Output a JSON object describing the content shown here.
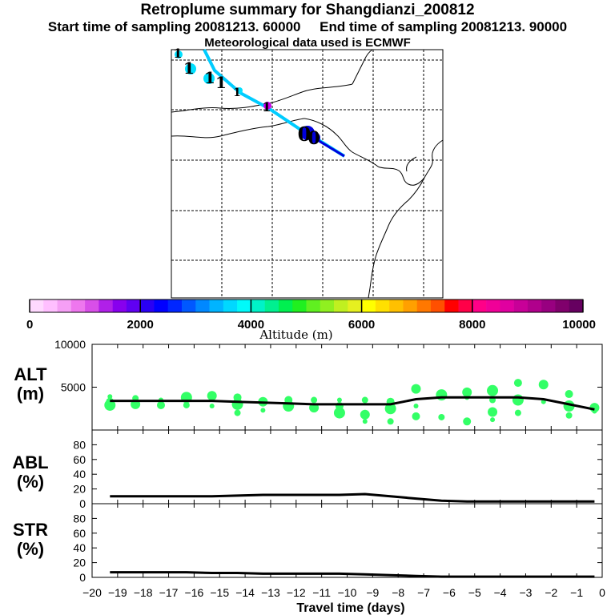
{
  "header": {
    "title": "Retroplume summary for Shangdianzi_200812",
    "subtitle": "Start time of sampling 20081213. 60000     End time of sampling 20081213. 90000",
    "meteo": "Meteorological data used is ECMWF"
  },
  "colors": {
    "scatter": "#33ff66",
    "line": "#000000",
    "track_cyan": "#00ccff",
    "track_blue": "#0000dd"
  },
  "chart_data": [
    {
      "type": "map",
      "title": "Retroplume trajectory",
      "track": [
        {
          "label": "1",
          "altitude": 3600
        },
        {
          "label": "1",
          "altitude": 3500
        },
        {
          "label": "1",
          "altitude": 3400
        },
        {
          "label": "1",
          "altitude": 3300
        },
        {
          "label": "1",
          "altitude": 3300
        },
        {
          "label": "1",
          "altitude": 8800
        },
        {
          "label": "0",
          "altitude": 2300
        },
        {
          "label": "0",
          "altitude": 2300
        }
      ]
    },
    {
      "type": "colorbar",
      "xlabel": "Altitude (m)",
      "ticks": [
        "0",
        "2000",
        "4000",
        "6000",
        "8000",
        "10000"
      ],
      "range": [
        0,
        10000
      ],
      "colors": [
        "#ffd9ff",
        "#ffbfff",
        "#f59ff5",
        "#ee77ee",
        "#d84fe8",
        "#b020e8",
        "#8800ee",
        "#6000f2",
        "#2a00f4",
        "#0000ff",
        "#0026ff",
        "#0058ff",
        "#0088ff",
        "#00b4ff",
        "#00d8ff",
        "#00fafa",
        "#00f2c8",
        "#00f090",
        "#00f050",
        "#20f020",
        "#60f020",
        "#90f020",
        "#c0f020",
        "#e6f020",
        "#ffff00",
        "#ffe000",
        "#ffc000",
        "#ffa000",
        "#ff7800",
        "#ff5000",
        "#ff0000",
        "#ff0048",
        "#ff0088",
        "#f00098",
        "#e000a0",
        "#c80098",
        "#b0008c",
        "#980080",
        "#80006c",
        "#660060"
      ]
    },
    {
      "type": "scatter",
      "ylabel": "ALT\n(m)",
      "ylabel_lines": [
        "ALT",
        "(m)"
      ],
      "ylim": [
        0,
        10000
      ],
      "yticks": [
        "5000",
        "10000"
      ],
      "x": [
        -19.3,
        -18.3,
        -17.3,
        -16.3,
        -15.3,
        -14.3,
        -13.3,
        -12.3,
        -11.3,
        -10.3,
        -9.3,
        -8.3,
        -7.3,
        -6.3,
        -5.3,
        -4.3,
        -3.3,
        -2.3,
        -1.3,
        -0.3
      ],
      "mean_altitude": [
        3400,
        3400,
        3400,
        3400,
        3400,
        3300,
        3200,
        3100,
        3000,
        3000,
        3000,
        3000,
        3600,
        3800,
        3800,
        3800,
        3800,
        3600,
        3000,
        2400
      ],
      "points": [
        {
          "x": -19.3,
          "y": 3900
        },
        {
          "x": -19.3,
          "y": 3300
        },
        {
          "x": -19.3,
          "y": 2900
        },
        {
          "x": -18.3,
          "y": 3700
        },
        {
          "x": -18.3,
          "y": 3000
        },
        {
          "x": -17.3,
          "y": 3500
        },
        {
          "x": -17.3,
          "y": 2900
        },
        {
          "x": -16.3,
          "y": 3800
        },
        {
          "x": -16.3,
          "y": 2900
        },
        {
          "x": -15.3,
          "y": 4000
        },
        {
          "x": -15.3,
          "y": 2800
        },
        {
          "x": -14.3,
          "y": 3800
        },
        {
          "x": -14.3,
          "y": 3000
        },
        {
          "x": -14.3,
          "y": 2000
        },
        {
          "x": -13.3,
          "y": 3300
        },
        {
          "x": -13.3,
          "y": 2300
        },
        {
          "x": -12.3,
          "y": 3500
        },
        {
          "x": -12.3,
          "y": 2800
        },
        {
          "x": -11.3,
          "y": 3500
        },
        {
          "x": -11.3,
          "y": 2600
        },
        {
          "x": -10.3,
          "y": 3500
        },
        {
          "x": -10.3,
          "y": 2800
        },
        {
          "x": -10.3,
          "y": 2000
        },
        {
          "x": -9.3,
          "y": 3500
        },
        {
          "x": -9.3,
          "y": 1800
        },
        {
          "x": -9.3,
          "y": 1000
        },
        {
          "x": -8.3,
          "y": 3300
        },
        {
          "x": -8.3,
          "y": 2500
        },
        {
          "x": -8.3,
          "y": 1000
        },
        {
          "x": -7.3,
          "y": 4800
        },
        {
          "x": -7.3,
          "y": 2800
        },
        {
          "x": -7.3,
          "y": 1600
        },
        {
          "x": -6.3,
          "y": 4100
        },
        {
          "x": -6.3,
          "y": 1500
        },
        {
          "x": -5.3,
          "y": 4400
        },
        {
          "x": -5.3,
          "y": 3800
        },
        {
          "x": -5.3,
          "y": 1000
        },
        {
          "x": -4.3,
          "y": 4600
        },
        {
          "x": -4.3,
          "y": 3500
        },
        {
          "x": -4.3,
          "y": 2100
        },
        {
          "x": -4.3,
          "y": 1200
        },
        {
          "x": -3.3,
          "y": 5500
        },
        {
          "x": -3.3,
          "y": 3500
        },
        {
          "x": -3.3,
          "y": 2000
        },
        {
          "x": -2.3,
          "y": 5300
        },
        {
          "x": -2.3,
          "y": 3300
        },
        {
          "x": -1.3,
          "y": 4200
        },
        {
          "x": -1.3,
          "y": 2800
        },
        {
          "x": -1.3,
          "y": 1700
        },
        {
          "x": -0.3,
          "y": 2600
        },
        {
          "x": -0.3,
          "y": 2200
        }
      ]
    },
    {
      "type": "line",
      "ylabel": "ABL\n(%)",
      "ylabel_lines": [
        "ABL",
        "(%)"
      ],
      "ylim": [
        0,
        100
      ],
      "yticks": [
        "0",
        "20",
        "40",
        "60",
        "80"
      ],
      "x": [
        -19.3,
        -18.3,
        -17.3,
        -16.3,
        -15.3,
        -14.3,
        -13.3,
        -12.3,
        -11.3,
        -10.3,
        -9.3,
        -8.3,
        -7.3,
        -6.3,
        -5.3,
        -4.3,
        -3.3,
        -2.3,
        -1.3,
        -0.3
      ],
      "values": [
        10,
        10,
        10,
        10,
        10,
        11,
        12,
        12,
        12,
        12,
        13,
        10,
        7,
        4,
        3,
        3,
        3,
        3,
        3,
        3
      ]
    },
    {
      "type": "line",
      "ylabel": "STR\n(%)",
      "ylabel_lines": [
        "STR",
        "(%)"
      ],
      "ylim": [
        0,
        100
      ],
      "yticks": [
        "0",
        "20",
        "40",
        "60",
        "80"
      ],
      "x": [
        -19.3,
        -18.3,
        -17.3,
        -16.3,
        -15.3,
        -14.3,
        -13.3,
        -12.3,
        -11.3,
        -10.3,
        -9.3,
        -8.3,
        -7.3,
        -6.3,
        -5.3,
        -4.3,
        -3.3,
        -2.3,
        -1.3,
        -0.3
      ],
      "values": [
        7,
        7,
        7,
        7,
        6,
        6,
        5,
        5,
        5,
        5,
        4,
        3,
        2,
        1,
        1,
        1,
        1,
        1,
        1,
        1
      ],
      "xlabel": "Travel time (days)",
      "xticks": [
        "-20",
        "-19",
        "-18",
        "-17",
        "-16",
        "-15",
        "-14",
        "-13",
        "-12",
        "-11",
        "-10",
        "-9",
        "-8",
        "-7",
        "-6",
        "-5",
        "-4",
        "-3",
        "-2",
        "-1",
        "0"
      ],
      "xlim": [
        -20,
        0
      ]
    }
  ]
}
